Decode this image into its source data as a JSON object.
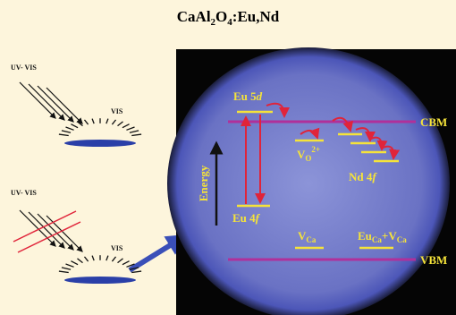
{
  "title": [
    "CaAl",
    "2",
    "O",
    "4",
    ":Eu,Nd"
  ],
  "left": {
    "top": {
      "excitation": "UV- VIS",
      "emission": "VIS"
    },
    "bottom": {
      "excitation": "UV- VIS",
      "emission": "VIS"
    }
  },
  "diagram": {
    "eu_5d": [
      "Eu 5",
      "d"
    ],
    "eu_4f": [
      "Eu 4",
      "f"
    ],
    "cbm": "CBM",
    "vbm": "VBM",
    "vo": [
      "V",
      "O",
      "2+"
    ],
    "nd_4f": [
      "Nd 4",
      "f"
    ],
    "energy": "Energy",
    "vca": [
      "V",
      "Ca"
    ],
    "euca_vca": [
      "Eu",
      "Ca",
      "+V",
      "Ca"
    ]
  }
}
